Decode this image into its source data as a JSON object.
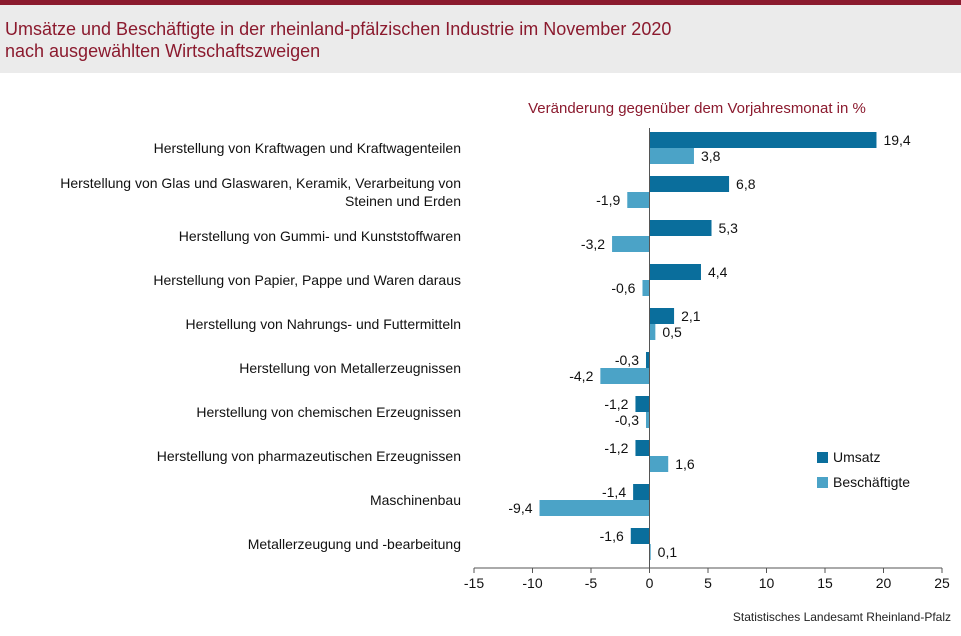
{
  "header": {
    "title_line1": "Umsätze und Beschäftigte in der rheinland-pfälzischen Industrie im November 2020",
    "title_line2": "nach ausgewählten Wirtschaftszweigen"
  },
  "source": "Statistisches Landesamt Rheinland-Pfalz",
  "colors": {
    "umsatz": "#0a6e9c",
    "beschaeftigte": "#4ba3c7",
    "title": "#8b1a2e"
  },
  "chart_data": {
    "type": "bar",
    "orientation": "horizontal",
    "subtitle": "Veränderung gegenüber dem Vorjahresmonat in %",
    "categories": [
      [
        "Herstellung von Kraftwagen und Kraftwagenteilen"
      ],
      [
        "Herstellung von Glas und Glaswaren, Keramik, Verarbeitung von",
        "Steinen und Erden"
      ],
      [
        "Herstellung von Gummi- und Kunststoffwaren"
      ],
      [
        "Herstellung von Papier, Pappe und Waren daraus"
      ],
      [
        "Herstellung von Nahrungs- und Futtermitteln"
      ],
      [
        "Herstellung von Metallerzeugnissen"
      ],
      [
        "Herstellung von chemischen Erzeugnissen"
      ],
      [
        "Herstellung von pharmazeutischen Erzeugnissen"
      ],
      [
        "Maschinenbau"
      ],
      [
        "Metallerzeugung und -bearbeitung"
      ]
    ],
    "series": [
      {
        "name": "Umsatz",
        "values": [
          19.4,
          6.8,
          5.3,
          4.4,
          2.1,
          -0.3,
          -1.2,
          -1.2,
          -1.4,
          -1.6
        ],
        "labels": [
          "19,4",
          "6,8",
          "5,3",
          "4,4",
          "2,1",
          "-0,3",
          "-1,2",
          "-1,2",
          "-1,4",
          "-1,6"
        ]
      },
      {
        "name": "Beschäftigte",
        "values": [
          3.8,
          -1.9,
          -3.2,
          -0.6,
          0.5,
          -4.2,
          -0.3,
          1.6,
          -9.4,
          0.1
        ],
        "labels": [
          "3,8",
          "-1,9",
          "-3,2",
          "-0,6",
          "0,5",
          "-4,2",
          "-0,3",
          "1,6",
          "-9,4",
          "0,1"
        ]
      }
    ],
    "xlim": [
      -15,
      25
    ],
    "xticks": [
      -15,
      -10,
      -5,
      0,
      5,
      10,
      15,
      20,
      25
    ],
    "xtick_labels": [
      "-15",
      "-10",
      "-5",
      "0",
      "5",
      "10",
      "15",
      "20",
      "25"
    ],
    "legend": "right",
    "grid": false
  }
}
